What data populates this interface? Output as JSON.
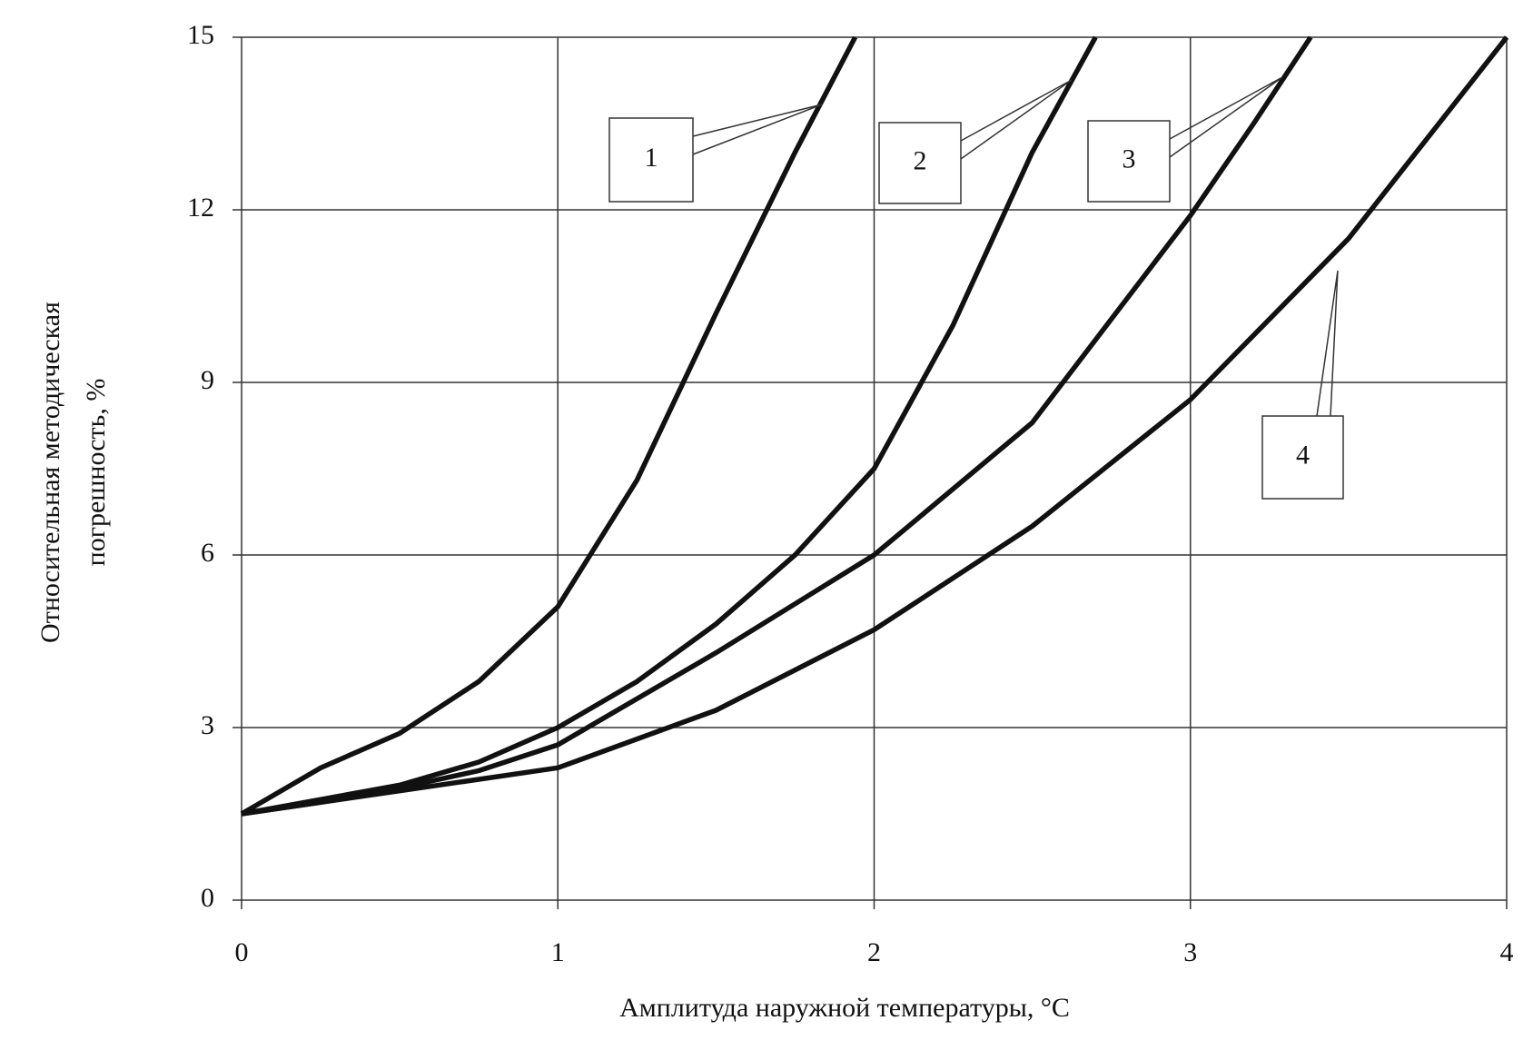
{
  "chart_data": {
    "type": "line",
    "x_label": "Амплитуда наружной температуры, °C",
    "y_label": [
      "Относительная методическая",
      "погрешность, %"
    ],
    "xlim": [
      0,
      4
    ],
    "xticks": [
      0,
      1,
      2,
      3,
      4
    ],
    "ylim": [
      0,
      15
    ],
    "yticks": [
      0,
      3,
      6,
      9,
      12,
      15
    ],
    "grid": true,
    "series": [
      {
        "name": "1",
        "color": "#111111",
        "x": [
          0,
          0.25,
          0.5,
          0.75,
          1,
          1.25,
          1.5,
          1.75,
          1.94
        ],
        "values": [
          1.5,
          2.3,
          2.9,
          3.8,
          5.1,
          7.3,
          10.2,
          13.0,
          15
        ]
      },
      {
        "name": "2",
        "color": "#111111",
        "x": [
          0,
          0.25,
          0.5,
          0.75,
          1,
          1.25,
          1.5,
          1.75,
          2,
          2.25,
          2.5,
          2.7
        ],
        "values": [
          1.5,
          1.75,
          2.0,
          2.4,
          3.0,
          3.8,
          4.8,
          6.0,
          7.5,
          10.0,
          13.0,
          15
        ]
      },
      {
        "name": "3",
        "color": "#111111",
        "x": [
          0,
          0.25,
          0.5,
          0.75,
          1,
          1.5,
          2,
          2.5,
          3,
          3.2,
          3.38
        ],
        "values": [
          1.5,
          1.7,
          1.95,
          2.25,
          2.7,
          4.3,
          6.0,
          8.3,
          11.9,
          13.5,
          15
        ]
      },
      {
        "name": "4",
        "color": "#111111",
        "x": [
          0,
          0.5,
          1,
          1.5,
          2,
          2.5,
          3,
          3.5,
          4
        ],
        "values": [
          1.5,
          1.9,
          2.3,
          3.3,
          4.7,
          6.5,
          8.7,
          11.5,
          15
        ]
      }
    ]
  }
}
